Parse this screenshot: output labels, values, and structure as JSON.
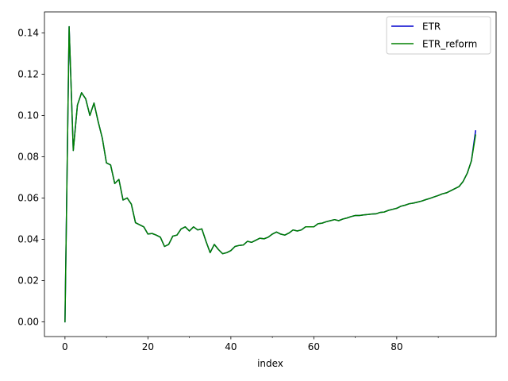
{
  "chart_data": {
    "type": "line",
    "title": "",
    "xlabel": "index",
    "ylabel": "",
    "xlim": [
      -4.95,
      103.95
    ],
    "ylim": [
      -0.00715,
      0.15015
    ],
    "xticks": [
      0,
      20,
      40,
      60,
      80
    ],
    "xticks_minor": [
      10,
      30,
      50,
      70,
      90
    ],
    "yticks": [
      0.0,
      0.02,
      0.04,
      0.06,
      0.08,
      0.1,
      0.12,
      0.14
    ],
    "ytick_labels": [
      "0.00",
      "0.02",
      "0.04",
      "0.06",
      "0.08",
      "0.10",
      "0.12",
      "0.14"
    ],
    "grid": false,
    "legend_position": "top-right",
    "x": [
      0,
      1,
      2,
      3,
      4,
      5,
      6,
      7,
      8,
      9,
      10,
      11,
      12,
      13,
      14,
      15,
      16,
      17,
      18,
      19,
      20,
      21,
      22,
      23,
      24,
      25,
      26,
      27,
      28,
      29,
      30,
      31,
      32,
      33,
      34,
      35,
      36,
      37,
      38,
      39,
      40,
      41,
      42,
      43,
      44,
      45,
      46,
      47,
      48,
      49,
      50,
      51,
      52,
      53,
      54,
      55,
      56,
      57,
      58,
      59,
      60,
      61,
      62,
      63,
      64,
      65,
      66,
      67,
      68,
      69,
      70,
      71,
      72,
      73,
      74,
      75,
      76,
      77,
      78,
      79,
      80,
      81,
      82,
      83,
      84,
      85,
      86,
      87,
      88,
      89,
      90,
      91,
      92,
      93,
      94,
      95,
      96,
      97,
      98,
      99
    ],
    "series": [
      {
        "name": "ETR",
        "color": "#0000cd",
        "values": [
          0.0,
          0.143,
          0.083,
          0.105,
          0.111,
          0.108,
          0.1,
          0.106,
          0.097,
          0.089,
          0.077,
          0.076,
          0.067,
          0.069,
          0.059,
          0.06,
          0.057,
          0.048,
          0.047,
          0.046,
          0.0425,
          0.0428,
          0.042,
          0.041,
          0.0365,
          0.0375,
          0.0415,
          0.042,
          0.045,
          0.046,
          0.044,
          0.046,
          0.0445,
          0.045,
          0.039,
          0.0335,
          0.0375,
          0.035,
          0.033,
          0.0335,
          0.0345,
          0.0365,
          0.037,
          0.0372,
          0.039,
          0.0385,
          0.0395,
          0.0405,
          0.0402,
          0.041,
          0.0425,
          0.0435,
          0.0425,
          0.042,
          0.043,
          0.0445,
          0.044,
          0.0445,
          0.046,
          0.046,
          0.046,
          0.0475,
          0.0478,
          0.0485,
          0.049,
          0.0495,
          0.049,
          0.0498,
          0.0503,
          0.051,
          0.0515,
          0.0515,
          0.0518,
          0.052,
          0.0522,
          0.0523,
          0.053,
          0.0532,
          0.054,
          0.0545,
          0.055,
          0.056,
          0.0565,
          0.0572,
          0.0575,
          0.058,
          0.0585,
          0.0592,
          0.0598,
          0.0605,
          0.0612,
          0.062,
          0.0625,
          0.0635,
          0.0645,
          0.0655,
          0.068,
          0.072,
          0.078,
          0.0925
        ]
      },
      {
        "name": "ETR_reform",
        "color": "#008000",
        "values": [
          0.0,
          0.143,
          0.083,
          0.105,
          0.111,
          0.108,
          0.1,
          0.106,
          0.097,
          0.089,
          0.077,
          0.076,
          0.067,
          0.069,
          0.059,
          0.06,
          0.057,
          0.048,
          0.047,
          0.046,
          0.0425,
          0.0428,
          0.042,
          0.041,
          0.0365,
          0.0375,
          0.0415,
          0.042,
          0.045,
          0.046,
          0.044,
          0.046,
          0.0445,
          0.045,
          0.039,
          0.0335,
          0.0375,
          0.035,
          0.033,
          0.0335,
          0.0345,
          0.0365,
          0.037,
          0.0372,
          0.039,
          0.0385,
          0.0395,
          0.0405,
          0.0402,
          0.041,
          0.0425,
          0.0435,
          0.0425,
          0.042,
          0.043,
          0.0445,
          0.044,
          0.0445,
          0.046,
          0.046,
          0.046,
          0.0475,
          0.0478,
          0.0485,
          0.049,
          0.0495,
          0.049,
          0.0498,
          0.0503,
          0.051,
          0.0515,
          0.0515,
          0.0518,
          0.052,
          0.0522,
          0.0523,
          0.053,
          0.0532,
          0.054,
          0.0545,
          0.055,
          0.056,
          0.0565,
          0.0572,
          0.0575,
          0.058,
          0.0585,
          0.0592,
          0.0598,
          0.0605,
          0.0612,
          0.062,
          0.0625,
          0.0635,
          0.0645,
          0.0655,
          0.068,
          0.072,
          0.078,
          0.0905
        ]
      }
    ]
  }
}
